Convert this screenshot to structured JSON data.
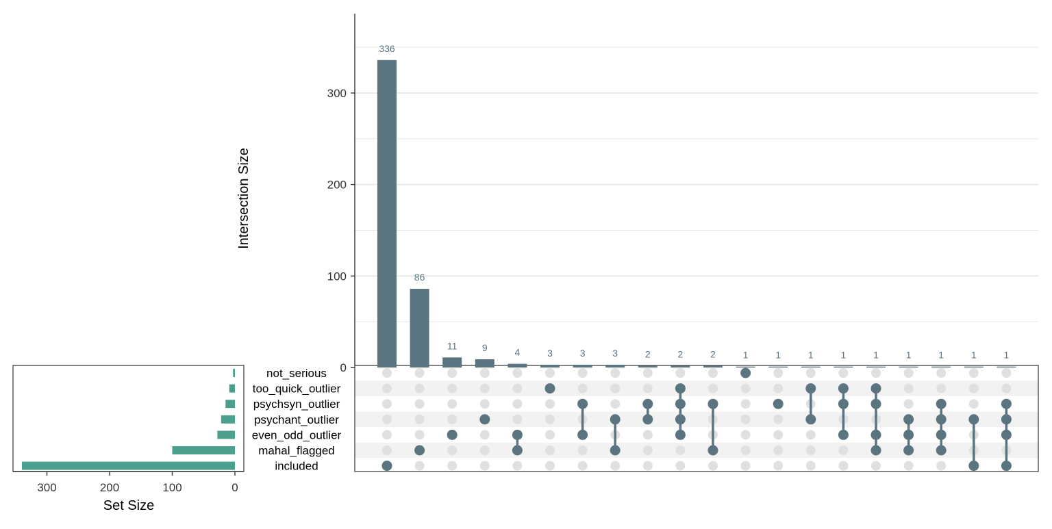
{
  "chart_data": {
    "type": "upset",
    "colors": {
      "intersection_bar": "#5a7480",
      "set_bar": "#4aa08c",
      "dot_inactive": "#e0e0e0",
      "row_stripe": "#f2f2f2",
      "grid": "#e5e5e5"
    },
    "intersection_axis": {
      "title": "Intersection Size",
      "ticks": [
        0,
        100,
        200,
        300
      ],
      "range": [
        0,
        380
      ]
    },
    "set_axis": {
      "title": "Set Size",
      "ticks": [
        300,
        200,
        100,
        0
      ],
      "range": [
        0,
        355
      ]
    },
    "sets": [
      {
        "name": "not_serious",
        "size": 3
      },
      {
        "name": "too_quick_outlier",
        "size": 9
      },
      {
        "name": "psychsyn_outlier",
        "size": 15
      },
      {
        "name": "psychant_outlier",
        "size": 22
      },
      {
        "name": "even_odd_outlier",
        "size": 28
      },
      {
        "name": "mahal_flagged",
        "size": 100
      },
      {
        "name": "included",
        "size": 340
      }
    ],
    "intersections": [
      {
        "value": 336,
        "label": "336",
        "members": [
          "included"
        ]
      },
      {
        "value": 86,
        "label": "86",
        "members": [
          "mahal_flagged"
        ]
      },
      {
        "value": 11,
        "label": "11",
        "members": [
          "even_odd_outlier"
        ]
      },
      {
        "value": 9,
        "label": "9",
        "members": [
          "psychant_outlier"
        ]
      },
      {
        "value": 4,
        "label": "4",
        "members": [
          "even_odd_outlier",
          "mahal_flagged"
        ]
      },
      {
        "value": 3,
        "label": "3",
        "members": [
          "too_quick_outlier"
        ]
      },
      {
        "value": 3,
        "label": "3",
        "members": [
          "psychsyn_outlier",
          "even_odd_outlier"
        ]
      },
      {
        "value": 3,
        "label": "3",
        "members": [
          "psychant_outlier",
          "mahal_flagged"
        ]
      },
      {
        "value": 2,
        "label": "2",
        "members": [
          "psychsyn_outlier",
          "psychant_outlier"
        ]
      },
      {
        "value": 2,
        "label": "2",
        "members": [
          "too_quick_outlier",
          "psychsyn_outlier",
          "psychant_outlier",
          "even_odd_outlier"
        ]
      },
      {
        "value": 2,
        "label": "2",
        "members": [
          "psychsyn_outlier",
          "mahal_flagged"
        ]
      },
      {
        "value": 1,
        "label": "1",
        "members": [
          "not_serious"
        ]
      },
      {
        "value": 1,
        "label": "1",
        "members": [
          "psychsyn_outlier"
        ]
      },
      {
        "value": 1,
        "label": "1",
        "members": [
          "too_quick_outlier",
          "psychant_outlier"
        ]
      },
      {
        "value": 1,
        "label": "1",
        "members": [
          "too_quick_outlier",
          "psychsyn_outlier",
          "even_odd_outlier"
        ]
      },
      {
        "value": 1,
        "label": "1",
        "members": [
          "too_quick_outlier",
          "psychsyn_outlier",
          "even_odd_outlier",
          "mahal_flagged"
        ]
      },
      {
        "value": 1,
        "label": "1",
        "members": [
          "psychant_outlier",
          "even_odd_outlier",
          "mahal_flagged"
        ]
      },
      {
        "value": 1,
        "label": "1",
        "members": [
          "psychsyn_outlier",
          "psychant_outlier",
          "even_odd_outlier",
          "mahal_flagged"
        ]
      },
      {
        "value": 1,
        "label": "1",
        "members": [
          "psychant_outlier",
          "included"
        ]
      },
      {
        "value": 1,
        "label": "1",
        "members": [
          "psychsyn_outlier",
          "psychant_outlier",
          "even_odd_outlier",
          "included"
        ]
      }
    ]
  }
}
